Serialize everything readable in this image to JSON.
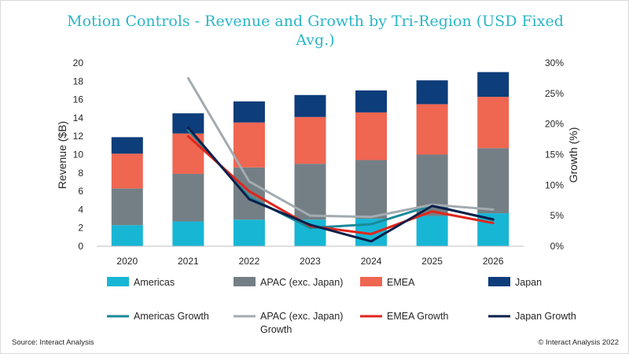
{
  "chart_data": {
    "type": "bar",
    "title": "Motion Controls - Revenue and Growth by Tri-Region (USD Fixed Avg.)",
    "title_lines": [
      "Motion Controls - Revenue and Growth by Tri-Region (USD Fixed",
      "Avg.)"
    ],
    "categories": [
      "2020",
      "2021",
      "2022",
      "2023",
      "2024",
      "2025",
      "2026"
    ],
    "ylabel": "Revenue ($B)",
    "ylim": [
      0,
      20
    ],
    "yticks": [
      "0",
      "2",
      "4",
      "6",
      "8",
      "10",
      "12",
      "14",
      "16",
      "18",
      "20"
    ],
    "y2label": "Growth (%)",
    "y2lim": [
      0,
      30
    ],
    "y2ticks": [
      "0%",
      "5%",
      "10%",
      "15%",
      "20%",
      "25%",
      "30%"
    ],
    "stacked": true,
    "series": [
      {
        "name": "Americas",
        "kind": "bar",
        "color": "#17b6d5",
        "values": [
          2.3,
          2.7,
          2.9,
          2.9,
          3.0,
          3.3,
          3.6
        ]
      },
      {
        "name": "APAC (exc. Japan)",
        "kind": "bar",
        "color": "#747f85",
        "values": [
          4.0,
          5.2,
          5.7,
          6.1,
          6.4,
          6.7,
          7.1
        ]
      },
      {
        "name": "EMEA",
        "kind": "bar",
        "color": "#ef6651",
        "values": [
          3.8,
          4.4,
          4.9,
          5.1,
          5.2,
          5.5,
          5.6
        ]
      },
      {
        "name": "Japan",
        "kind": "bar",
        "color": "#0d3d7a",
        "values": [
          1.8,
          2.2,
          2.3,
          2.4,
          2.4,
          2.6,
          2.7
        ]
      }
    ],
    "growth_series": [
      {
        "name": "Americas Growth",
        "color": "#1a8a9a",
        "values": [
          null,
          19.0,
          8.0,
          3.0,
          3.6,
          6.7,
          4.3
        ]
      },
      {
        "name": "APAC (exc. Japan) Growth",
        "label_lines": [
          "APAC (exc. Japan)",
          "Growth"
        ],
        "color": "#a3abb0",
        "values": [
          null,
          27.5,
          10.6,
          5.0,
          4.8,
          6.8,
          6.0
        ]
      },
      {
        "name": "EMEA Growth",
        "color": "#e0261c",
        "values": [
          null,
          18.0,
          9.0,
          3.3,
          2.0,
          5.7,
          3.8
        ]
      },
      {
        "name": "Japan Growth",
        "color": "#0b1f4b",
        "values": [
          null,
          19.4,
          7.7,
          3.5,
          0.8,
          6.6,
          4.4
        ]
      }
    ],
    "grid": false,
    "legend": "bottom"
  },
  "footer": {
    "source": "Source: Interact Analysis",
    "copyright": "© Interact Analysis 2022"
  }
}
